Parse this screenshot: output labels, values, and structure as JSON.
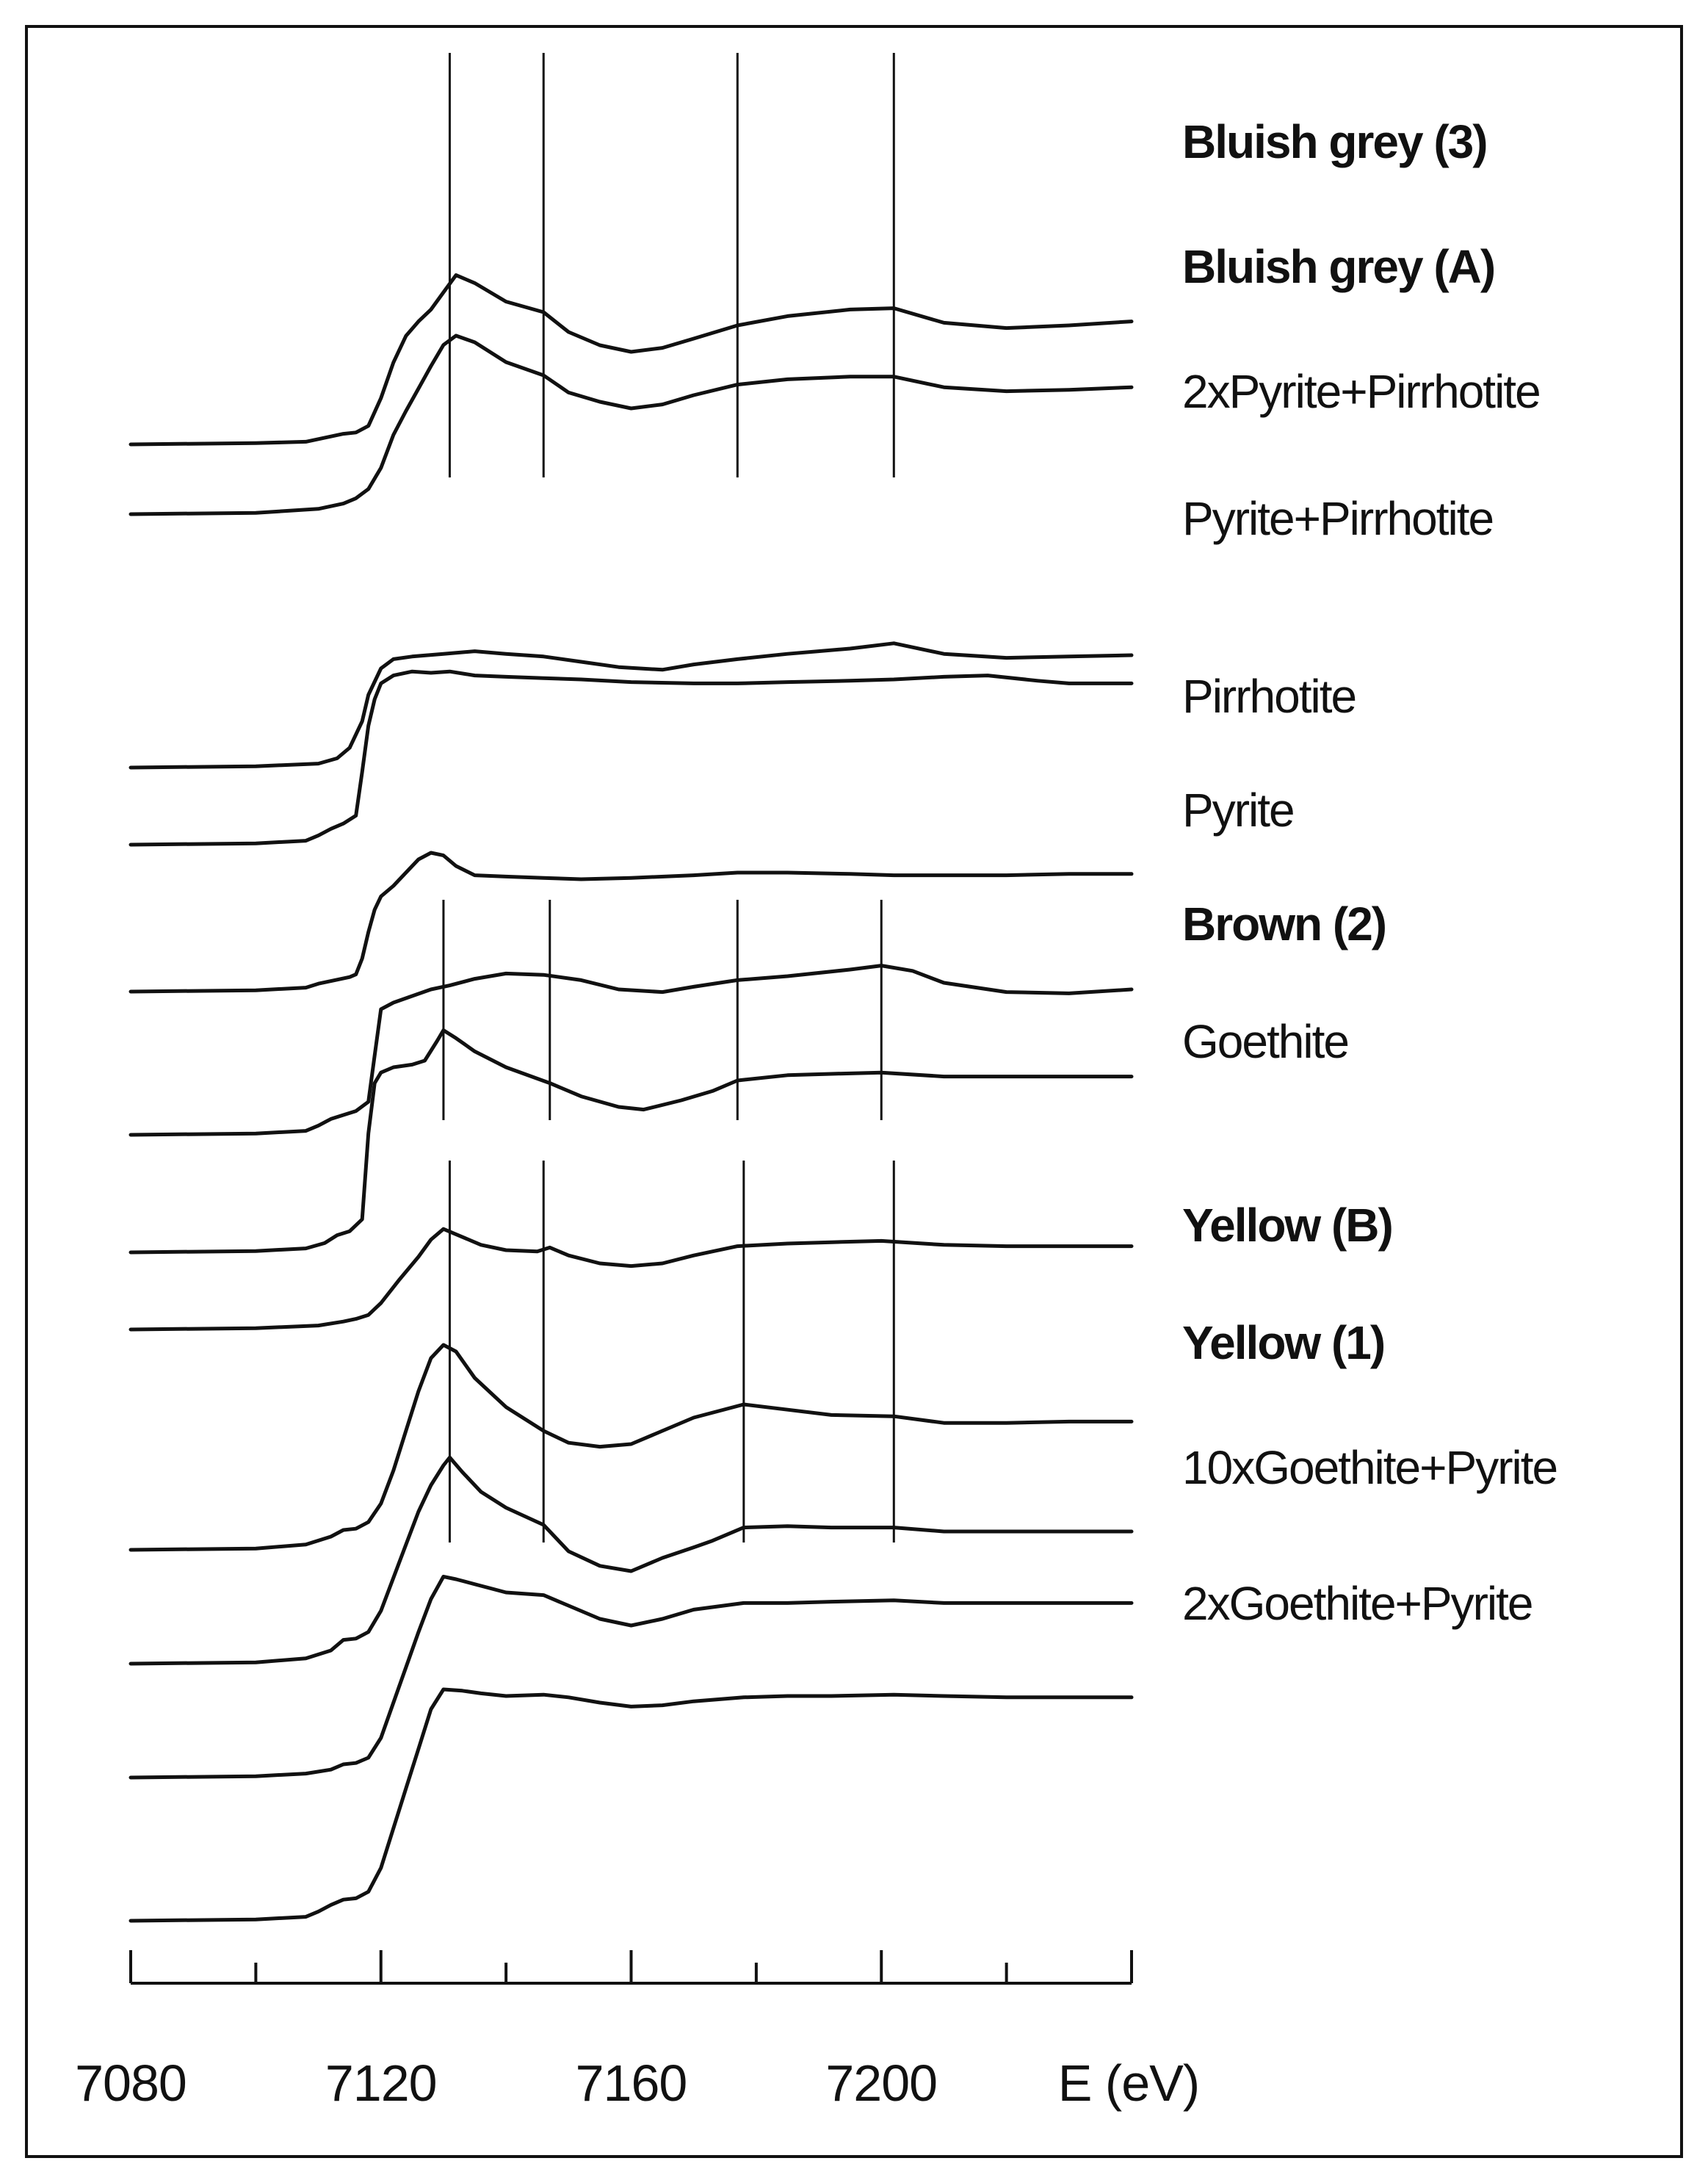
{
  "chart_data": {
    "type": "line",
    "title": "",
    "xlabel": "E (eV)",
    "ylabel": "",
    "xlim": [
      7080,
      7240
    ],
    "x_ticks": [
      7080,
      7120,
      7160,
      7200
    ],
    "grid": false,
    "reference_lines": {
      "group_top": [
        7131,
        7146,
        7177,
        7202
      ],
      "group_middle": [
        7130,
        7147,
        7177,
        7200
      ],
      "group_bottom": [
        7131,
        7146,
        7178,
        7202
      ]
    },
    "series": [
      {
        "name": "Bluish grey (3)",
        "bold": true,
        "x": [
          7080,
          7100,
          7108,
          7112,
          7114,
          7116,
          7118,
          7120,
          7122,
          7124,
          7126,
          7128,
          7130,
          7132,
          7135,
          7140,
          7146,
          7150,
          7155,
          7160,
          7165,
          7170,
          7177,
          7185,
          7195,
          7202,
          7210,
          7220,
          7230,
          7240
        ],
        "y": [
          0,
          0.01,
          0.02,
          0.06,
          0.08,
          0.09,
          0.14,
          0.35,
          0.62,
          0.82,
          0.93,
          1.02,
          1.15,
          1.28,
          1.22,
          1.08,
          1.0,
          0.85,
          0.75,
          0.7,
          0.73,
          0.8,
          0.9,
          0.97,
          1.02,
          1.03,
          0.92,
          0.88,
          0.9,
          0.93
        ]
      },
      {
        "name": "Bluish grey (A)",
        "bold": true,
        "x": [
          7080,
          7100,
          7110,
          7114,
          7116,
          7118,
          7120,
          7122,
          7124,
          7126,
          7128,
          7130,
          7132,
          7135,
          7140,
          7146,
          7150,
          7155,
          7160,
          7165,
          7170,
          7177,
          7185,
          7195,
          7202,
          7210,
          7220,
          7230,
          7240
        ],
        "y": [
          0,
          0.01,
          0.04,
          0.08,
          0.12,
          0.19,
          0.35,
          0.6,
          0.78,
          0.95,
          1.12,
          1.28,
          1.35,
          1.3,
          1.15,
          1.05,
          0.92,
          0.85,
          0.8,
          0.83,
          0.9,
          0.98,
          1.02,
          1.04,
          1.04,
          0.96,
          0.93,
          0.94,
          0.96
        ]
      },
      {
        "name": "2xPyrite+Pirrhotite",
        "bold": false,
        "x": [
          7080,
          7100,
          7110,
          7113,
          7115,
          7117,
          7118,
          7120,
          7122,
          7125,
          7130,
          7135,
          7140,
          7146,
          7152,
          7158,
          7165,
          7170,
          7177,
          7185,
          7195,
          7202,
          7210,
          7220,
          7230,
          7240
        ],
        "y": [
          0,
          0.01,
          0.03,
          0.07,
          0.15,
          0.35,
          0.55,
          0.75,
          0.82,
          0.84,
          0.86,
          0.88,
          0.86,
          0.84,
          0.8,
          0.76,
          0.74,
          0.78,
          0.82,
          0.86,
          0.9,
          0.94,
          0.86,
          0.83,
          0.84,
          0.85
        ]
      },
      {
        "name": "Pyrite+Pirrhotite",
        "bold": false,
        "x": [
          7080,
          7100,
          7108,
          7110,
          7112,
          7114,
          7116,
          7117,
          7118,
          7119,
          7120,
          7122,
          7125,
          7128,
          7131,
          7135,
          7140,
          7146,
          7152,
          7160,
          7170,
          7177,
          7185,
          7195,
          7202,
          7210,
          7217,
          7225,
          7230,
          7240
        ],
        "y": [
          0,
          0.01,
          0.03,
          0.07,
          0.12,
          0.16,
          0.22,
          0.55,
          0.9,
          1.1,
          1.22,
          1.28,
          1.31,
          1.3,
          1.31,
          1.28,
          1.27,
          1.26,
          1.25,
          1.23,
          1.22,
          1.22,
          1.23,
          1.24,
          1.25,
          1.27,
          1.28,
          1.24,
          1.22,
          1.22
        ]
      },
      {
        "name": "Pirrhotite",
        "bold": false,
        "x": [
          7080,
          7100,
          7108,
          7110,
          7113,
          7115,
          7116,
          7117,
          7118,
          7119,
          7120,
          7122,
          7124,
          7126,
          7128,
          7130,
          7132,
          7135,
          7140,
          7146,
          7152,
          7160,
          7170,
          7177,
          7185,
          7195,
          7202,
          7210,
          7220,
          7230,
          7240
        ],
        "y": [
          0,
          0.01,
          0.03,
          0.06,
          0.09,
          0.11,
          0.13,
          0.25,
          0.45,
          0.62,
          0.72,
          0.8,
          0.9,
          1.0,
          1.05,
          1.03,
          0.95,
          0.88,
          0.87,
          0.86,
          0.85,
          0.86,
          0.88,
          0.9,
          0.9,
          0.89,
          0.88,
          0.88,
          0.88,
          0.89,
          0.89
        ]
      },
      {
        "name": "Pyrite",
        "bold": false,
        "x": [
          7080,
          7100,
          7108,
          7110,
          7112,
          7114,
          7116,
          7118,
          7119,
          7120,
          7122,
          7125,
          7128,
          7131,
          7135,
          7140,
          7146,
          7152,
          7158,
          7165,
          7170,
          7177,
          7185,
          7195,
          7200,
          7205,
          7210,
          7220,
          7230,
          7240
        ],
        "y": [
          0,
          0.01,
          0.03,
          0.07,
          0.12,
          0.15,
          0.18,
          0.25,
          0.6,
          0.95,
          1.0,
          1.05,
          1.1,
          1.13,
          1.18,
          1.22,
          1.21,
          1.17,
          1.1,
          1.08,
          1.12,
          1.17,
          1.2,
          1.25,
          1.28,
          1.24,
          1.15,
          1.08,
          1.07,
          1.1
        ]
      },
      {
        "name": "Brown (2)",
        "bold": true,
        "x": [
          7080,
          7100,
          7108,
          7111,
          7113,
          7115,
          7117,
          7118,
          7119,
          7120,
          7122,
          7125,
          7127,
          7129,
          7130,
          7132,
          7135,
          7140,
          7147,
          7152,
          7158,
          7162,
          7168,
          7173,
          7177,
          7185,
          7192,
          7200,
          7210,
          7220,
          7230,
          7240
        ],
        "y": [
          0,
          0.01,
          0.03,
          0.07,
          0.13,
          0.16,
          0.25,
          0.9,
          1.28,
          1.36,
          1.4,
          1.42,
          1.45,
          1.6,
          1.68,
          1.62,
          1.52,
          1.4,
          1.28,
          1.18,
          1.1,
          1.08,
          1.15,
          1.22,
          1.3,
          1.34,
          1.35,
          1.36,
          1.33,
          1.33,
          1.33,
          1.33
        ]
      },
      {
        "name": "Goethite",
        "bold": false,
        "x": [
          7080,
          7100,
          7110,
          7114,
          7116,
          7118,
          7120,
          7123,
          7126,
          7128,
          7130,
          7132,
          7136,
          7140,
          7145,
          7147,
          7150,
          7155,
          7160,
          7165,
          7170,
          7177,
          7185,
          7192,
          7200,
          7210,
          7220,
          7230,
          7240
        ],
        "y": [
          0,
          0.01,
          0.03,
          0.06,
          0.08,
          0.11,
          0.2,
          0.38,
          0.55,
          0.68,
          0.76,
          0.72,
          0.64,
          0.6,
          0.59,
          0.62,
          0.56,
          0.5,
          0.48,
          0.5,
          0.56,
          0.63,
          0.65,
          0.66,
          0.67,
          0.64,
          0.63,
          0.63,
          0.63
        ]
      },
      {
        "name": "Yellow (B)",
        "bold": true,
        "x": [
          7080,
          7100,
          7108,
          7112,
          7114,
          7116,
          7118,
          7120,
          7122,
          7124,
          7126,
          7128,
          7130,
          7132,
          7135,
          7140,
          7146,
          7150,
          7155,
          7160,
          7165,
          7170,
          7178,
          7185,
          7192,
          7202,
          7210,
          7220,
          7230,
          7240
        ],
        "y": [
          0,
          0.01,
          0.04,
          0.1,
          0.15,
          0.16,
          0.21,
          0.35,
          0.6,
          0.9,
          1.2,
          1.45,
          1.55,
          1.5,
          1.3,
          1.08,
          0.9,
          0.81,
          0.78,
          0.8,
          0.9,
          1.0,
          1.1,
          1.06,
          1.02,
          1.01,
          0.96,
          0.96,
          0.97,
          0.97
        ]
      },
      {
        "name": "Yellow (1)",
        "bold": true,
        "x": [
          7080,
          7100,
          7108,
          7112,
          7114,
          7116,
          7118,
          7120,
          7122,
          7124,
          7126,
          7128,
          7130,
          7131,
          7133,
          7136,
          7140,
          7146,
          7150,
          7155,
          7160,
          7165,
          7170,
          7173,
          7178,
          7185,
          7192,
          7202,
          7210,
          7220,
          7230,
          7240
        ],
        "y": [
          0,
          0.01,
          0.04,
          0.1,
          0.18,
          0.19,
          0.24,
          0.4,
          0.65,
          0.9,
          1.15,
          1.35,
          1.5,
          1.56,
          1.45,
          1.3,
          1.18,
          1.05,
          0.85,
          0.74,
          0.7,
          0.8,
          0.88,
          0.93,
          1.03,
          1.04,
          1.03,
          1.03,
          1.0,
          1.0,
          1.0,
          1.0
        ]
      },
      {
        "name": "10xGoethite+Pyrite",
        "bold": false,
        "x": [
          7080,
          7100,
          7108,
          7112,
          7114,
          7116,
          7118,
          7120,
          7123,
          7126,
          7128,
          7130,
          7132,
          7136,
          7140,
          7146,
          7150,
          7155,
          7160,
          7165,
          7170,
          7178,
          7185,
          7192,
          7202,
          7210,
          7220,
          7230,
          7240
        ],
        "y": [
          0,
          0.01,
          0.03,
          0.06,
          0.1,
          0.11,
          0.15,
          0.3,
          0.7,
          1.1,
          1.35,
          1.52,
          1.5,
          1.45,
          1.4,
          1.38,
          1.3,
          1.2,
          1.15,
          1.2,
          1.27,
          1.32,
          1.32,
          1.33,
          1.34,
          1.32,
          1.32,
          1.32,
          1.32
        ]
      },
      {
        "name": "2xGoethite+Pyrite",
        "bold": false,
        "x": [
          7080,
          7100,
          7108,
          7110,
          7112,
          7114,
          7116,
          7118,
          7120,
          7122,
          7124,
          7126,
          7128,
          7130,
          7133,
          7136,
          7140,
          7146,
          7150,
          7155,
          7160,
          7165,
          7170,
          7178,
          7185,
          7192,
          7202,
          7210,
          7220,
          7230,
          7240
        ],
        "y": [
          0,
          0.01,
          0.03,
          0.07,
          0.12,
          0.16,
          0.17,
          0.22,
          0.4,
          0.7,
          1.0,
          1.3,
          1.6,
          1.75,
          1.74,
          1.72,
          1.7,
          1.71,
          1.69,
          1.65,
          1.62,
          1.63,
          1.66,
          1.69,
          1.7,
          1.7,
          1.71,
          1.7,
          1.69,
          1.69,
          1.69
        ]
      }
    ]
  }
}
